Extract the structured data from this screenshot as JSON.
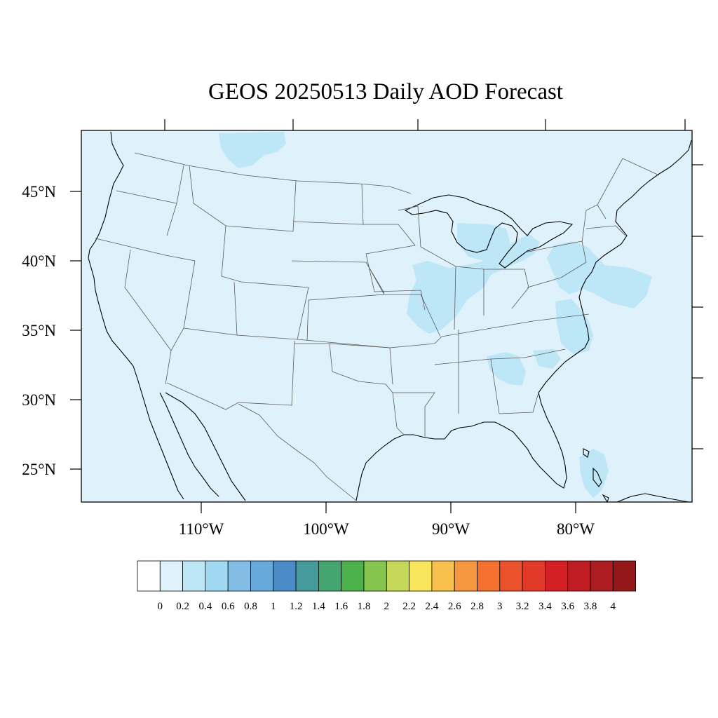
{
  "title": "GEOS 20250513 Daily AOD Forecast",
  "axes": {
    "lat_labels": [
      "45°N",
      "40°N",
      "35°N",
      "30°N",
      "25°N"
    ],
    "lon_labels": [
      "110°W",
      "100°W",
      "90°W",
      "80°W"
    ]
  },
  "colorbar": {
    "labels": [
      "0",
      "0.2",
      "0.4",
      "0.6",
      "0.8",
      "1",
      "1.2",
      "1.4",
      "1.6",
      "1.8",
      "2",
      "2.2",
      "2.4",
      "2.6",
      "2.8",
      "3",
      "3.2",
      "3.4",
      "3.6",
      "3.8",
      "4"
    ],
    "colors": [
      "#ffffff",
      "#dff2fb",
      "#bde6f7",
      "#a0d8f2",
      "#82bde6",
      "#68a9dc",
      "#4a8bc8",
      "#469a9b",
      "#45a571",
      "#4db14b",
      "#85c44f",
      "#c4d759",
      "#f8e65d",
      "#f8c14d",
      "#f69840",
      "#f3702f",
      "#eb522c",
      "#e23a29",
      "#d51f26",
      "#bf1c24",
      "#ac1c21",
      "#941819"
    ]
  },
  "map": {
    "background_color": "#dff2fb",
    "elevated_aod_color": "#bde6f7"
  }
}
